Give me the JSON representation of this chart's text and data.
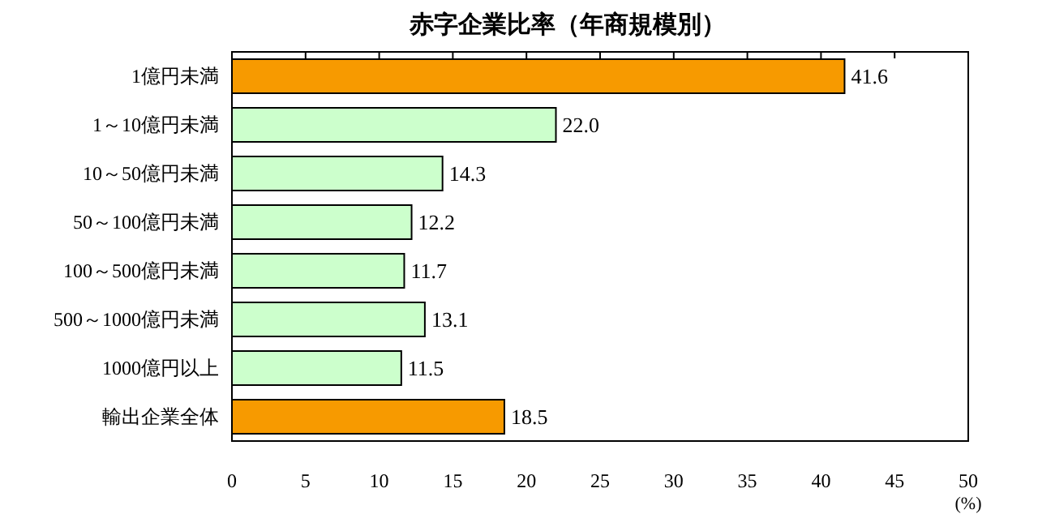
{
  "chart_data": {
    "type": "bar",
    "orientation": "horizontal",
    "title": "赤字企業比率（年商規模別）",
    "xlabel": "(%)",
    "categories": [
      "1億円未満",
      "1～10億円未満",
      "10～50億円未満",
      "50～100億円未満",
      "100～500億円未満",
      "500～1000億円未満",
      "1000億円以上",
      "輸出企業全体"
    ],
    "values": [
      41.6,
      22.0,
      14.3,
      12.2,
      11.7,
      13.1,
      11.5,
      18.5
    ],
    "value_labels": [
      "41.6",
      "22.0",
      "14.3",
      "12.2",
      "11.7",
      "13.1",
      "11.5",
      "18.5"
    ],
    "colors": [
      "#f79a00",
      "#ccffcc",
      "#ccffcc",
      "#ccffcc",
      "#ccffcc",
      "#ccffcc",
      "#ccffcc",
      "#f79a00"
    ],
    "xlim": [
      0,
      50
    ],
    "xticks": [
      0,
      5,
      10,
      15,
      20,
      25,
      30,
      35,
      40,
      45,
      50
    ],
    "grid": false
  }
}
